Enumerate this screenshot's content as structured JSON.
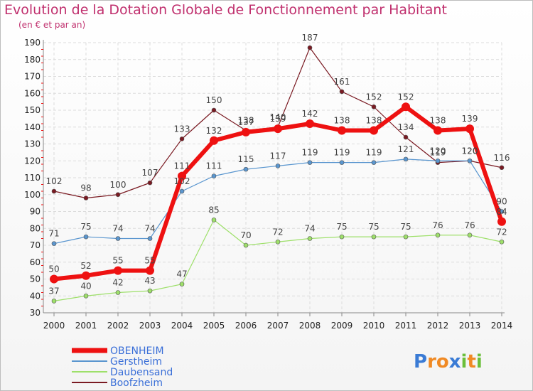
{
  "chart_data": {
    "type": "line",
    "title": "Evolution de la Dotation Globale de Fonctionnement par Habitant",
    "subtitle": "(en € et par an)",
    "xlabel": "",
    "ylabel": "",
    "x": [
      "2000",
      "2001",
      "2002",
      "2003",
      "2004",
      "2005",
      "2006",
      "2007",
      "2008",
      "2009",
      "2010",
      "2011",
      "2012",
      "2013",
      "2014"
    ],
    "ylim": [
      30,
      190
    ],
    "yticks": [
      30,
      40,
      50,
      60,
      70,
      80,
      90,
      100,
      110,
      120,
      130,
      140,
      150,
      160,
      170,
      180,
      190
    ],
    "series": [
      {
        "name": "Boofzheim",
        "color": "#7a1a22",
        "width": 1.2,
        "values": [
          102,
          98,
          100,
          107,
          133,
          150,
          138,
          140,
          187,
          161,
          152,
          134,
          119,
          120,
          116
        ]
      },
      {
        "name": "Gerstheim",
        "color": "#5a96cf",
        "width": 1.2,
        "values": [
          71,
          75,
          74,
          74,
          102,
          111,
          115,
          117,
          119,
          119,
          119,
          121,
          120,
          120,
          90
        ]
      },
      {
        "name": "Daubensand",
        "color": "#9ee06a",
        "width": 1.2,
        "values": [
          37,
          40,
          42,
          43,
          47,
          85,
          70,
          72,
          74,
          75,
          75,
          75,
          76,
          76,
          72
        ]
      },
      {
        "name": "OBENHEIM",
        "color": "#ee1111",
        "width": 6,
        "values": [
          50,
          52,
          55,
          55,
          111,
          132,
          137,
          139,
          142,
          138,
          138,
          152,
          138,
          139,
          84
        ]
      }
    ],
    "legend": [
      "OBENHEIM",
      "Gerstheim",
      "Daubensand",
      "Boofzheim"
    ],
    "legend_position": "bottom-left"
  },
  "logo": {
    "text": "Proxiti",
    "letters": [
      "P",
      "r",
      "o",
      "x",
      "i",
      "t",
      "i"
    ],
    "colors": [
      "#3a7bd5",
      "#f08a24",
      "#f08a24",
      "#3a7bd5",
      "#6bbf3a",
      "#f08a24",
      "#6bbf3a"
    ]
  }
}
